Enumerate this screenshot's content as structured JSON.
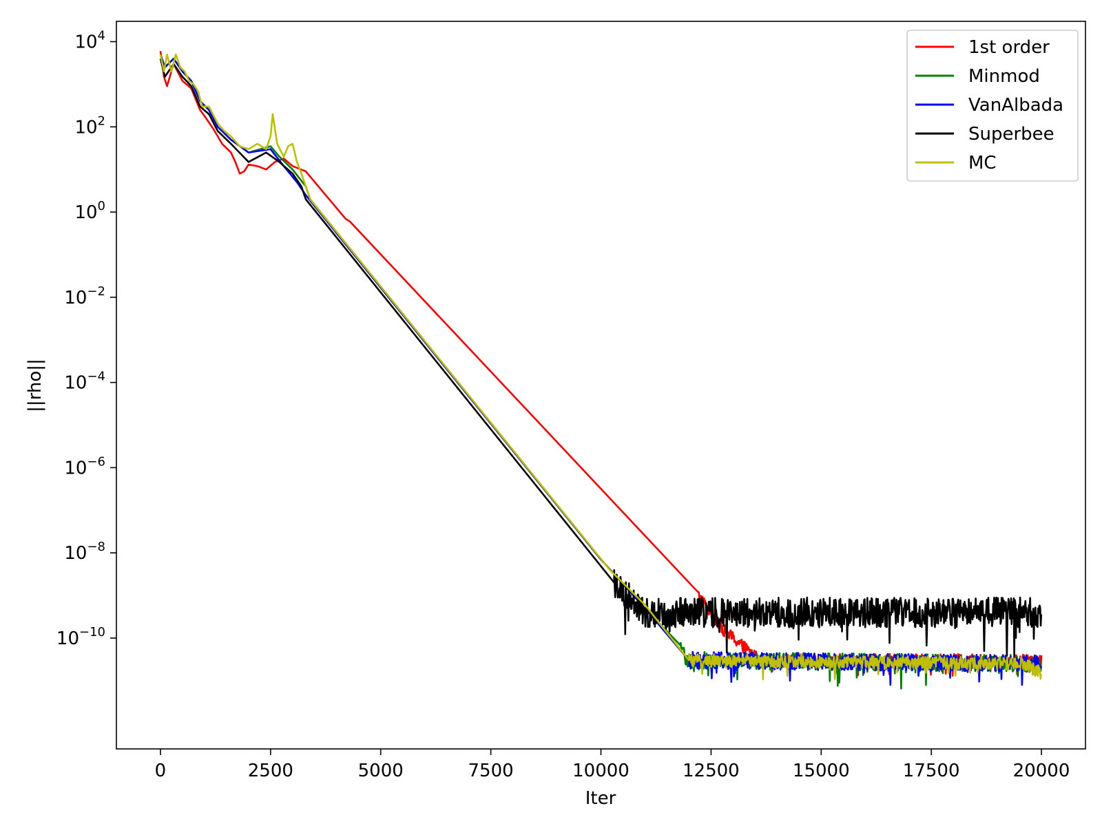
{
  "chart_data": {
    "type": "line",
    "title": "",
    "xlabel": "Iter",
    "ylabel": "||rho||",
    "yscale": "log",
    "xlim": [
      -1000,
      21000
    ],
    "ylim": [
      2.5e-13,
      30000.0
    ],
    "grid": false,
    "legend_position": "top-right",
    "x_ticks": [
      0,
      2500,
      5000,
      7500,
      10000,
      12500,
      15000,
      17500,
      20000
    ],
    "x_tick_labels": [
      "0",
      "2500",
      "5000",
      "7500",
      "10000",
      "12500",
      "15000",
      "17500",
      "20000"
    ],
    "y_ticks": [
      {
        "value": 10000.0,
        "base": "10",
        "exp": "4"
      },
      {
        "value": 100.0,
        "base": "10",
        "exp": "2"
      },
      {
        "value": 1,
        "base": "10",
        "exp": "0"
      },
      {
        "value": 0.01,
        "base": "10",
        "exp": "−2"
      },
      {
        "value": 0.0001,
        "base": "10",
        "exp": "−4"
      },
      {
        "value": 1e-06,
        "base": "10",
        "exp": "−6"
      },
      {
        "value": 1e-08,
        "base": "10",
        "exp": "−8"
      },
      {
        "value": 1e-10,
        "base": "10",
        "exp": "−10"
      }
    ],
    "series": [
      {
        "name": "1st order",
        "color": "#ff0000",
        "noise": {
          "start": 12200,
          "amplitude_decades": 0.15
        },
        "points": [
          [
            0,
            6000
          ],
          [
            80,
            1500
          ],
          [
            150,
            900
          ],
          [
            300,
            3000
          ],
          [
            500,
            1200
          ],
          [
            700,
            800
          ],
          [
            900,
            250
          ],
          [
            1000,
            180
          ],
          [
            1200,
            90
          ],
          [
            1400,
            40
          ],
          [
            1600,
            25
          ],
          [
            1700,
            15
          ],
          [
            1800,
            8
          ],
          [
            1900,
            9
          ],
          [
            2000,
            13
          ],
          [
            2200,
            12
          ],
          [
            2400,
            10
          ],
          [
            2600,
            15
          ],
          [
            2800,
            18
          ],
          [
            3000,
            12
          ],
          [
            3300,
            9
          ],
          [
            4200,
            0.7
          ],
          [
            4300,
            0.6
          ],
          [
            12000,
            2e-09
          ],
          [
            12800,
            1.5e-10
          ],
          [
            13600,
            3e-11
          ],
          [
            20000,
            3e-11
          ]
        ]
      },
      {
        "name": "Minmod",
        "color": "#008000",
        "noise": {
          "start": 11800,
          "amplitude_decades": 0.2
        },
        "points": [
          [
            0,
            5000
          ],
          [
            100,
            2500
          ],
          [
            300,
            4000
          ],
          [
            500,
            2000
          ],
          [
            700,
            1200
          ],
          [
            900,
            400
          ],
          [
            1100,
            250
          ],
          [
            1300,
            100
          ],
          [
            1600,
            50
          ],
          [
            2000,
            25
          ],
          [
            2500,
            35
          ],
          [
            2700,
            20
          ],
          [
            3000,
            10
          ],
          [
            3300,
            4
          ],
          [
            3400,
            2
          ],
          [
            10000,
            7e-09
          ],
          [
            11000,
            5e-10
          ],
          [
            12000,
            3e-11
          ],
          [
            20000,
            2.5e-11
          ]
        ]
      },
      {
        "name": "VanAlbada",
        "color": "#0000ff",
        "noise": {
          "start": 12000,
          "amplitude_decades": 0.2
        },
        "points": [
          [
            0,
            5000
          ],
          [
            100,
            2500
          ],
          [
            300,
            4000
          ],
          [
            500,
            2000
          ],
          [
            700,
            1200
          ],
          [
            900,
            400
          ],
          [
            1100,
            250
          ],
          [
            1300,
            100
          ],
          [
            1600,
            50
          ],
          [
            2000,
            25
          ],
          [
            2500,
            30
          ],
          [
            2800,
            12
          ],
          [
            3100,
            5
          ],
          [
            3300,
            2.5
          ],
          [
            10000,
            7e-09
          ],
          [
            11000,
            5e-10
          ],
          [
            12000,
            3e-11
          ],
          [
            20000,
            2.5e-11
          ]
        ]
      },
      {
        "name": "Superbee",
        "color": "#000000",
        "noise": {
          "start": 10300,
          "amplitude_decades": 0.35
        },
        "points": [
          [
            0,
            4000
          ],
          [
            100,
            1500
          ],
          [
            300,
            3000
          ],
          [
            500,
            1500
          ],
          [
            700,
            900
          ],
          [
            900,
            300
          ],
          [
            1100,
            200
          ],
          [
            1300,
            80
          ],
          [
            1600,
            40
          ],
          [
            2000,
            15
          ],
          [
            2400,
            25
          ],
          [
            2700,
            15
          ],
          [
            3000,
            8
          ],
          [
            3200,
            4
          ],
          [
            3300,
            2
          ],
          [
            10300,
            2e-09
          ],
          [
            11000,
            4e-10
          ],
          [
            20000,
            4e-10
          ]
        ]
      },
      {
        "name": "MC",
        "color": "#bfbf00",
        "noise": {
          "start": 12000,
          "amplitude_decades": 0.15
        },
        "points": [
          [
            0,
            5000
          ],
          [
            80,
            2000
          ],
          [
            150,
            5000
          ],
          [
            250,
            2000
          ],
          [
            350,
            5000
          ],
          [
            450,
            2500
          ],
          [
            550,
            2000
          ],
          [
            650,
            1200
          ],
          [
            750,
            1000
          ],
          [
            850,
            700
          ],
          [
            950,
            300
          ],
          [
            1100,
            300
          ],
          [
            1300,
            120
          ],
          [
            1450,
            80
          ],
          [
            1600,
            60
          ],
          [
            1800,
            35
          ],
          [
            2000,
            30
          ],
          [
            2200,
            40
          ],
          [
            2400,
            30
          ],
          [
            2500,
            60
          ],
          [
            2550,
            200
          ],
          [
            2650,
            40
          ],
          [
            2800,
            20
          ],
          [
            2900,
            35
          ],
          [
            3000,
            40
          ],
          [
            3100,
            15
          ],
          [
            3200,
            8
          ],
          [
            3300,
            4
          ],
          [
            3400,
            2
          ],
          [
            10200,
            4e-09
          ],
          [
            11000,
            6e-10
          ],
          [
            12000,
            3e-11
          ],
          [
            19600,
            2.5e-11
          ],
          [
            20000,
            1.5e-11
          ]
        ]
      }
    ]
  }
}
